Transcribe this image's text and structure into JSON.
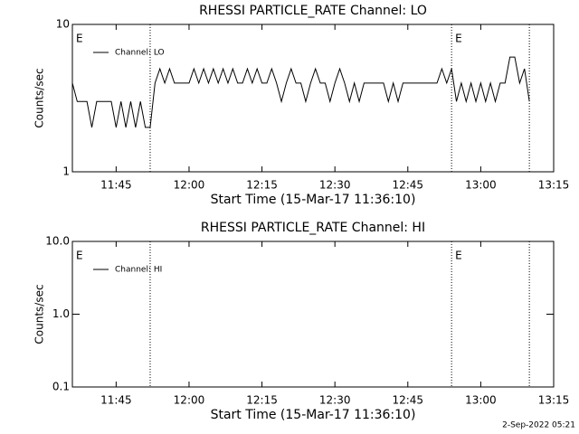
{
  "chart_data": [
    {
      "type": "line",
      "title": "RHESSI PARTICLE_RATE Channel: LO",
      "xlabel": "Start Time (15-Mar-17 11:36:10)",
      "ylabel": "Counts/sec",
      "log_scale": true,
      "legend": "upper-left",
      "xlim": [
        "11:36",
        "13:15"
      ],
      "xticks": [
        "11:45",
        "12:00",
        "12:15",
        "12:30",
        "12:45",
        "13:00",
        "13:15"
      ],
      "ylim": [
        1,
        10
      ],
      "yticks": [
        1,
        10
      ],
      "markers": [
        "11:52",
        "12:54",
        "13:10"
      ],
      "event_labels": [
        {
          "x": "11:36",
          "text": "E"
        },
        {
          "x": "12:54",
          "text": "E"
        }
      ],
      "x": [
        "11:36",
        "11:37",
        "11:38",
        "11:39",
        "11:40",
        "11:41",
        "11:42",
        "11:43",
        "11:44",
        "11:45",
        "11:46",
        "11:47",
        "11:48",
        "11:49",
        "11:50",
        "11:51",
        "11:52",
        "11:53",
        "11:54",
        "11:55",
        "11:56",
        "11:57",
        "11:58",
        "11:59",
        "12:00",
        "12:01",
        "12:02",
        "12:03",
        "12:04",
        "12:05",
        "12:06",
        "12:07",
        "12:08",
        "12:09",
        "12:10",
        "12:11",
        "12:12",
        "12:13",
        "12:14",
        "12:15",
        "12:16",
        "12:17",
        "12:18",
        "12:19",
        "12:20",
        "12:21",
        "12:22",
        "12:23",
        "12:24",
        "12:25",
        "12:26",
        "12:27",
        "12:28",
        "12:29",
        "12:30",
        "12:31",
        "12:32",
        "12:33",
        "12:34",
        "12:35",
        "12:36",
        "12:37",
        "12:38",
        "12:39",
        "12:40",
        "12:41",
        "12:42",
        "12:43",
        "12:44",
        "12:45",
        "12:46",
        "12:47",
        "12:48",
        "12:49",
        "12:50",
        "12:51",
        "12:52",
        "12:53",
        "12:54",
        "12:55",
        "12:56",
        "12:57",
        "12:58",
        "12:59",
        "13:00",
        "13:01",
        "13:02",
        "13:03",
        "13:04",
        "13:05",
        "13:06",
        "13:07",
        "13:08",
        "13:09",
        "13:10"
      ],
      "series": [
        {
          "name": "Channel: LO",
          "color": "#000000",
          "values": [
            4,
            3,
            3,
            3,
            2,
            3,
            3,
            3,
            3,
            2,
            3,
            2,
            3,
            2,
            3,
            2,
            2,
            4,
            5,
            4,
            5,
            4,
            4,
            4,
            4,
            5,
            4,
            5,
            4,
            5,
            4,
            5,
            4,
            5,
            4,
            4,
            5,
            4,
            5,
            4,
            4,
            5,
            4,
            3,
            4,
            5,
            4,
            4,
            3,
            4,
            5,
            4,
            4,
            3,
            4,
            5,
            4,
            3,
            4,
            3,
            4,
            4,
            4,
            4,
            4,
            3,
            4,
            3,
            4,
            4,
            4,
            4,
            4,
            4,
            4,
            4,
            5,
            4,
            5,
            3,
            4,
            3,
            4,
            3,
            4,
            3,
            4,
            3,
            4,
            4,
            6,
            6,
            4,
            5,
            3
          ]
        }
      ]
    },
    {
      "type": "line",
      "title": "RHESSI PARTICLE_RATE Channel: HI",
      "xlabel": "Start Time (15-Mar-17 11:36:10)",
      "ylabel": "Counts/sec",
      "log_scale": true,
      "legend": "upper-left",
      "xlim": [
        "11:36",
        "13:15"
      ],
      "xticks": [
        "11:45",
        "12:00",
        "12:15",
        "12:30",
        "12:45",
        "13:00",
        "13:15"
      ],
      "ylim": [
        0.1,
        10
      ],
      "yticks": [
        0.1,
        {
          "value": 1,
          "label": "1.0"
        },
        {
          "value": 10,
          "label": "10.0"
        }
      ],
      "markers": [
        "11:52",
        "12:54",
        "13:10"
      ],
      "event_labels": [
        {
          "x": "11:36",
          "text": "E"
        },
        {
          "x": "12:54",
          "text": "E"
        }
      ],
      "x": [],
      "series": [
        {
          "name": "Channel: HI",
          "color": "#000000",
          "values": []
        }
      ]
    }
  ],
  "footer": "2-Sep-2022 05:21"
}
